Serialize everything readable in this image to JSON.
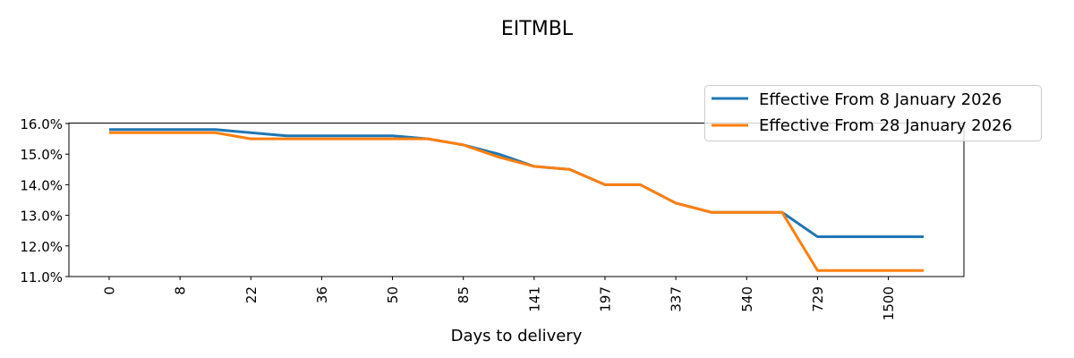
{
  "chart_data": {
    "type": "line",
    "title": "EITMBL",
    "xlabel": "Days to delivery",
    "ylabel": "",
    "x_tick_labels": [
      "0",
      "8",
      "22",
      "36",
      "50",
      "85",
      "141",
      "197",
      "337",
      "540",
      "729",
      "1500"
    ],
    "y_tick_labels": [
      "11.0%",
      "12.0%",
      "13.0%",
      "14.0%",
      "15.0%",
      "16.0%"
    ],
    "y_ticks": [
      11.0,
      12.0,
      13.0,
      14.0,
      15.0,
      16.0
    ],
    "ylim": [
      11.0,
      16.0
    ],
    "num_points": 24,
    "grid": false,
    "legend_position": "upper right (outside, overlapping axes)",
    "series": [
      {
        "name": "Effective From 8 January 2026",
        "color": "#1f77b4",
        "values": [
          15.8,
          15.8,
          15.8,
          15.8,
          15.7,
          15.6,
          15.6,
          15.6,
          15.6,
          15.5,
          15.3,
          15.0,
          14.6,
          14.5,
          14.0,
          14.0,
          13.4,
          13.1,
          13.1,
          13.1,
          12.3,
          12.3,
          12.3,
          12.3
        ]
      },
      {
        "name": "Effective From 28 January 2026",
        "color": "#ff7f0e",
        "values": [
          15.7,
          15.7,
          15.7,
          15.7,
          15.5,
          15.5,
          15.5,
          15.5,
          15.5,
          15.5,
          15.3,
          14.9,
          14.6,
          14.5,
          14.0,
          14.0,
          13.4,
          13.1,
          13.1,
          13.1,
          11.2,
          11.2,
          11.2,
          11.2
        ]
      }
    ]
  }
}
